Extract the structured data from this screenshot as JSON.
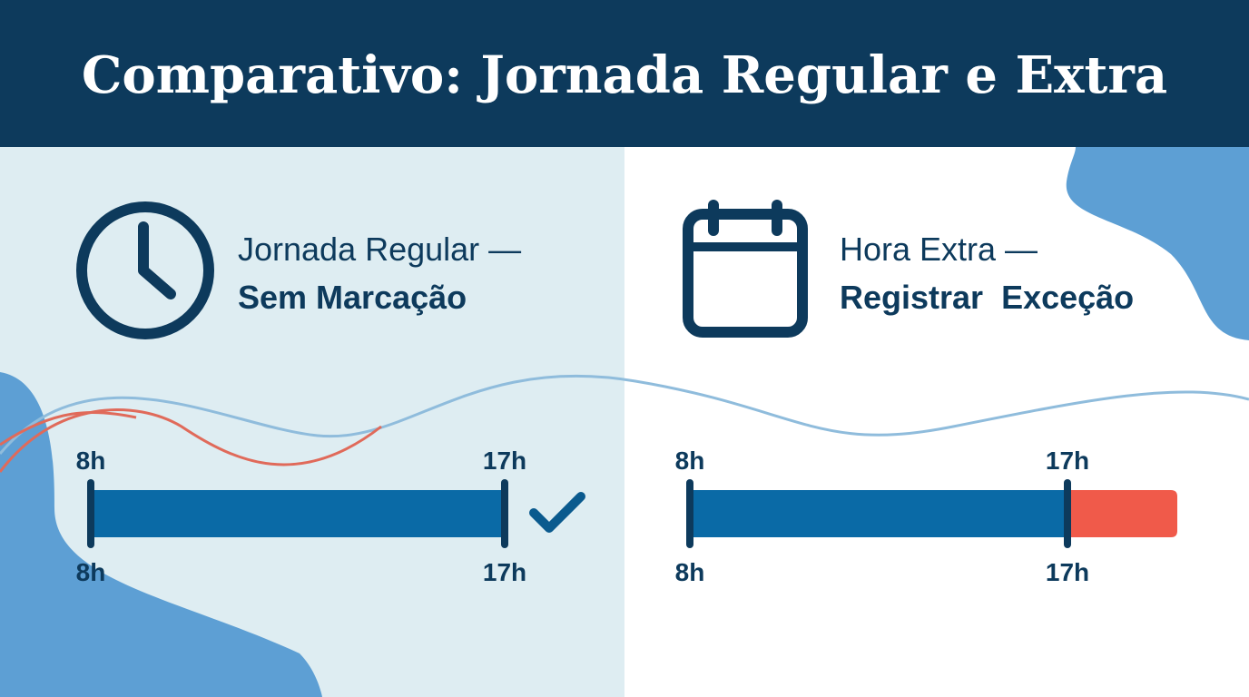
{
  "header": {
    "title": "Comparativo: Jornada Regular e Extra"
  },
  "panels": [
    {
      "heading": "Jornada Regular —",
      "subheading": "Sem Marcação",
      "start_top": "8h",
      "end_top": "17h",
      "start_bottom": "8h",
      "end_bottom": "17h"
    },
    {
      "heading": "Hora Extra —",
      "subheading": "Registrar  Exceção",
      "start_top": "8h",
      "end_top": "17h",
      "start_bottom": "8h",
      "end_bottom": "17h"
    }
  ]
}
